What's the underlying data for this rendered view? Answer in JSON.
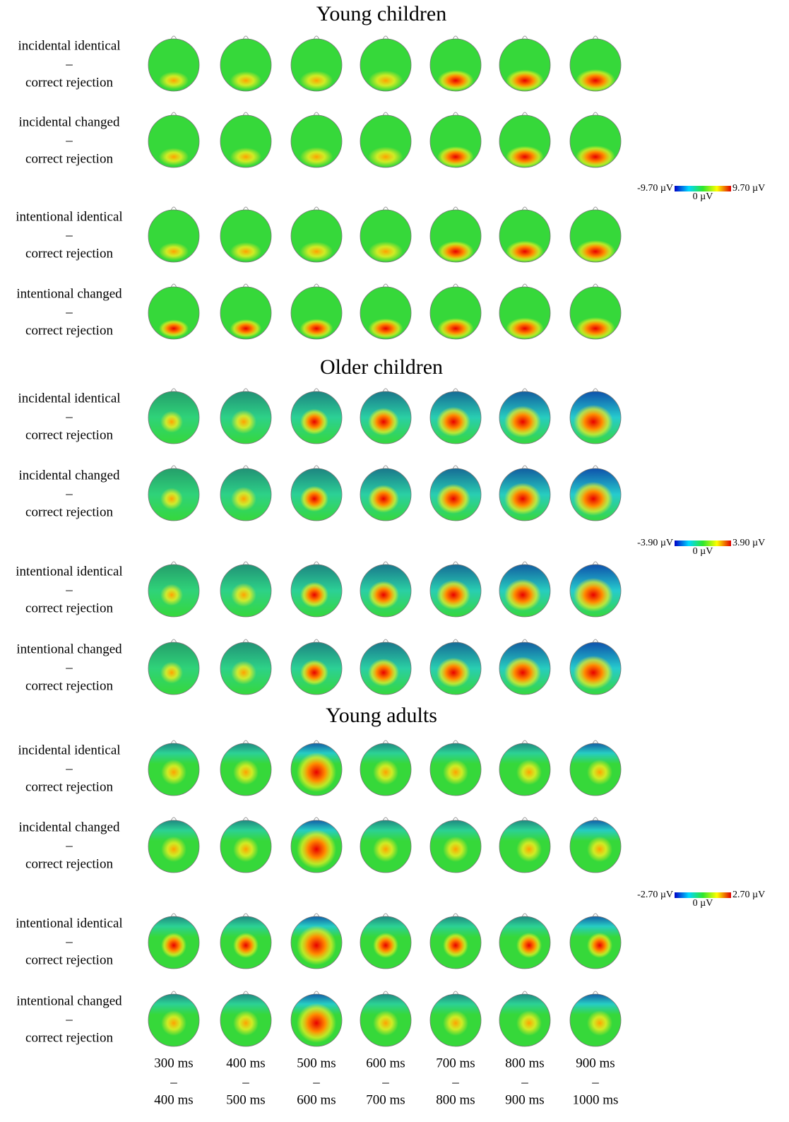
{
  "groups": [
    {
      "title": "Young children",
      "rows": [
        {
          "line1": "incidental identical",
          "dash": "–",
          "line2": "correct rejection"
        },
        {
          "line1": "incidental changed",
          "dash": "–",
          "line2": "correct rejection"
        },
        {
          "line1": "intentional identical",
          "dash": "–",
          "line2": "correct rejection"
        },
        {
          "line1": "intentional changed",
          "dash": "–",
          "line2": "correct rejection"
        }
      ],
      "colorbar": {
        "min": "-9.70 µV",
        "max": "9.70 µV",
        "zero": "0 µV"
      }
    },
    {
      "title": "Older children",
      "rows": [
        {
          "line1": "incidental identical",
          "dash": "–",
          "line2": "correct rejection"
        },
        {
          "line1": "incidental changed",
          "dash": "–",
          "line2": "correct rejection"
        },
        {
          "line1": "intentional identical",
          "dash": "–",
          "line2": "correct rejection"
        },
        {
          "line1": "intentional changed",
          "dash": "–",
          "line2": "correct rejection"
        }
      ],
      "colorbar": {
        "min": "-3.90 µV",
        "max": "3.90 µV",
        "zero": "0 µV"
      }
    },
    {
      "title": "Young adults",
      "rows": [
        {
          "line1": "incidental identical",
          "dash": "–",
          "line2": "correct rejection"
        },
        {
          "line1": "incidental changed",
          "dash": "–",
          "line2": "correct rejection"
        },
        {
          "line1": "intentional identical",
          "dash": "–",
          "line2": "correct rejection"
        },
        {
          "line1": "intentional changed",
          "dash": "–",
          "line2": "correct rejection"
        }
      ],
      "colorbar": {
        "min": "-2.70 µV",
        "max": "2.70 µV",
        "zero": "0 µV"
      }
    }
  ],
  "time_windows": [
    {
      "start": "300 ms",
      "dash": "–",
      "end": "400 ms"
    },
    {
      "start": "400 ms",
      "dash": "–",
      "end": "500 ms"
    },
    {
      "start": "500 ms",
      "dash": "–",
      "end": "600 ms"
    },
    {
      "start": "600 ms",
      "dash": "–",
      "end": "700 ms"
    },
    {
      "start": "700 ms",
      "dash": "–",
      "end": "800 ms"
    },
    {
      "start": "800 ms",
      "dash": "–",
      "end": "900 ms"
    },
    {
      "start": "900 ms",
      "dash": "–",
      "end": "1000 ms"
    }
  ]
}
